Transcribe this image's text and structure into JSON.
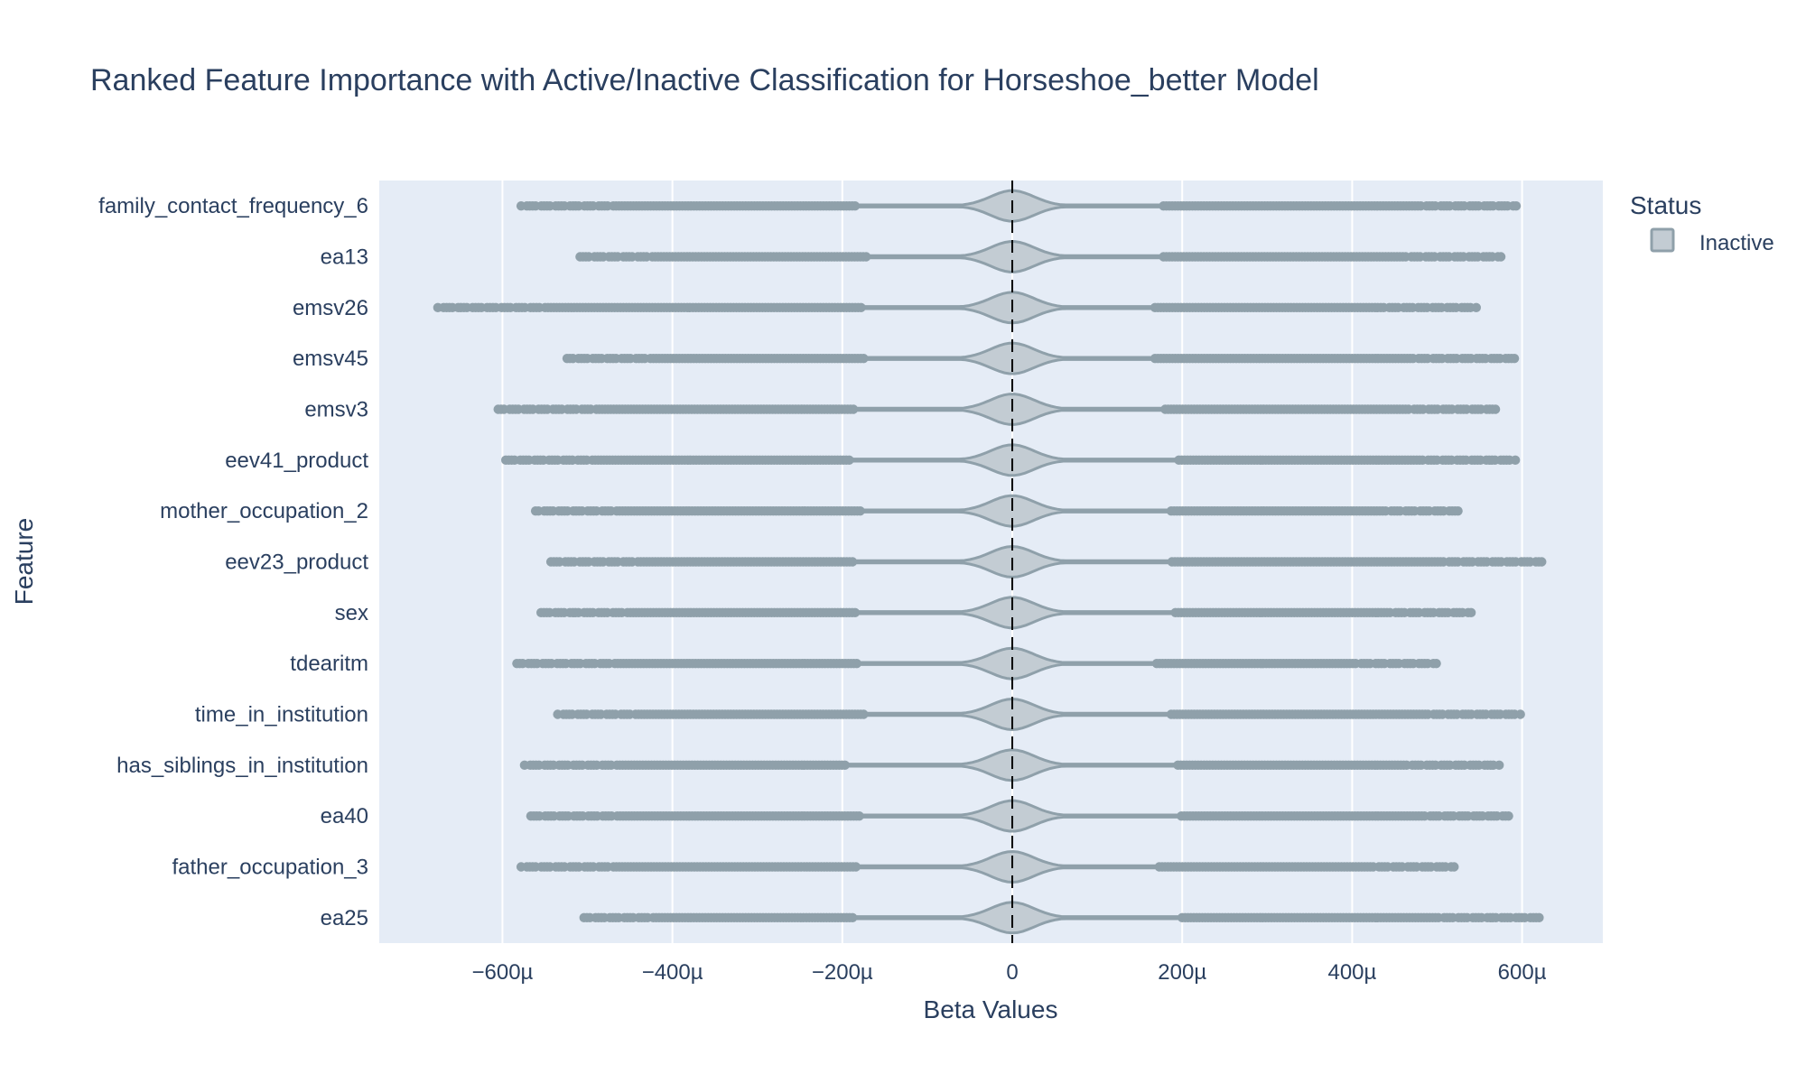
{
  "title": "Ranked Feature Importance with Active/Inactive Classification for Horseshoe_better Model",
  "xlabel": "Beta Values",
  "ylabel": "Feature",
  "legend": {
    "title": "Status",
    "items": [
      {
        "label": "Inactive",
        "fill": "#c3ccd3",
        "stroke": "#8fa0aa"
      }
    ]
  },
  "colors": {
    "plot_bg": "#e5ecf6",
    "grid": "#ffffff",
    "violin_fill": "#c3ccd3",
    "violin_stroke": "#8fa0aa",
    "point": "#8fa0aa",
    "zero_line": "#000000",
    "text": "#2a3f5f"
  },
  "chart_data": {
    "type": "violin",
    "orientation": "horizontal",
    "x_unit_suffix": "µ",
    "xlim": [
      -745,
      695
    ],
    "x_ticks": [
      -600,
      -400,
      -200,
      0,
      200,
      400,
      600
    ],
    "x_tick_labels": [
      "−600µ",
      "−400µ",
      "−200µ",
      "0",
      "200µ",
      "400µ",
      "600µ"
    ],
    "zero_line": 0,
    "legend_placement": "top-right",
    "grid": true,
    "features": [
      {
        "name": "family_contact_frequency_6",
        "status": "Inactive",
        "min": -578,
        "max": 593,
        "neg_outlier_start": -185,
        "pos_outlier_start": 178
      },
      {
        "name": "ea13",
        "status": "Inactive",
        "min": -512,
        "max": 575,
        "neg_outlier_start": -172,
        "pos_outlier_start": 178
      },
      {
        "name": "emsv26",
        "status": "Inactive",
        "min": -676,
        "max": 546,
        "neg_outlier_start": -178,
        "pos_outlier_start": 168
      },
      {
        "name": "emsv45",
        "status": "Inactive",
        "min": -524,
        "max": 591,
        "neg_outlier_start": -175,
        "pos_outlier_start": 168
      },
      {
        "name": "emsv3",
        "status": "Inactive",
        "min": -605,
        "max": 572,
        "neg_outlier_start": -187,
        "pos_outlier_start": 180
      },
      {
        "name": "eev41_product",
        "status": "Inactive",
        "min": -596,
        "max": 592,
        "neg_outlier_start": -192,
        "pos_outlier_start": 196
      },
      {
        "name": "mother_occupation_2",
        "status": "Inactive",
        "min": -561,
        "max": 528,
        "neg_outlier_start": -179,
        "pos_outlier_start": 187
      },
      {
        "name": "eev23_product",
        "status": "Inactive",
        "min": -543,
        "max": 623,
        "neg_outlier_start": -188,
        "pos_outlier_start": 188
      },
      {
        "name": "sex",
        "status": "Inactive",
        "min": -558,
        "max": 540,
        "neg_outlier_start": -185,
        "pos_outlier_start": 192
      },
      {
        "name": "tdearitm",
        "status": "Inactive",
        "min": -583,
        "max": 499,
        "neg_outlier_start": -183,
        "pos_outlier_start": 170
      },
      {
        "name": "time_in_institution",
        "status": "Inactive",
        "min": -535,
        "max": 598,
        "neg_outlier_start": -175,
        "pos_outlier_start": 187
      },
      {
        "name": "has_siblings_in_institution",
        "status": "Inactive",
        "min": -574,
        "max": 573,
        "neg_outlier_start": -197,
        "pos_outlier_start": 195
      },
      {
        "name": "ea40",
        "status": "Inactive",
        "min": -570,
        "max": 584,
        "neg_outlier_start": -180,
        "pos_outlier_start": 199
      },
      {
        "name": "father_occupation_3",
        "status": "Inactive",
        "min": -578,
        "max": 520,
        "neg_outlier_start": -184,
        "pos_outlier_start": 173
      },
      {
        "name": "ea25",
        "status": "Inactive",
        "min": -504,
        "max": 620,
        "neg_outlier_start": -188,
        "pos_outlier_start": 200
      }
    ]
  }
}
